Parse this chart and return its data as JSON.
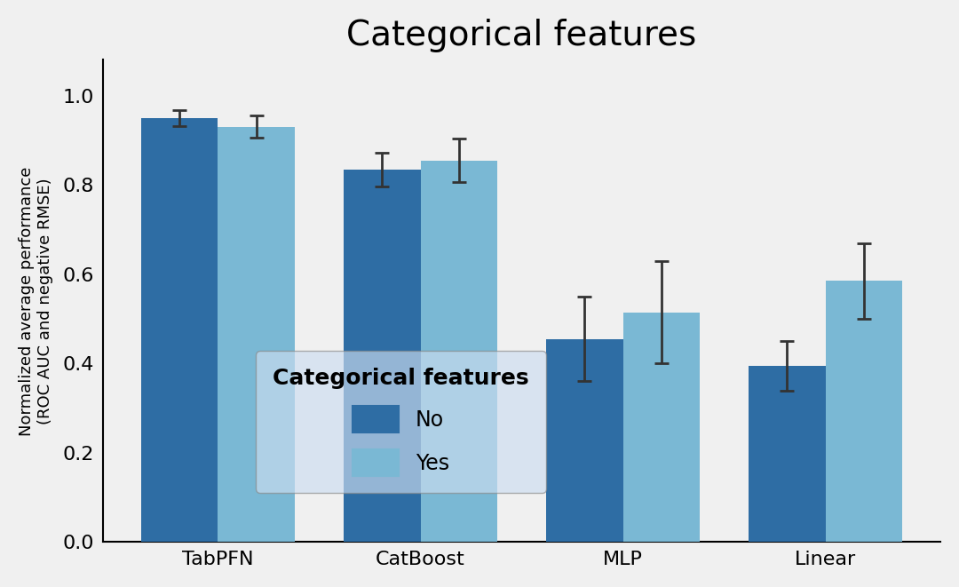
{
  "title": "Categorical features",
  "ylabel": "Normalized average performance\n(ROC AUC and negative RMSE)",
  "categories": [
    "TabPFN",
    "CatBoost",
    "MLP",
    "Linear"
  ],
  "legend_title": "Categorical features",
  "legend_labels": [
    "No",
    "Yes"
  ],
  "bar_color_no": "#2e6da4",
  "bar_color_yes": "#7ab8d4",
  "bar_width": 0.38,
  "ylim": [
    0,
    1.08
  ],
  "yticks": [
    0,
    0.2,
    0.4,
    0.6,
    0.8,
    1.0
  ],
  "values_no": [
    0.95,
    0.835,
    0.455,
    0.395
  ],
  "values_yes": [
    0.93,
    0.855,
    0.515,
    0.585
  ],
  "err_no": [
    0.018,
    0.038,
    0.095,
    0.055
  ],
  "err_yes": [
    0.025,
    0.048,
    0.115,
    0.085
  ],
  "background_color": "#f0f0f0",
  "plot_bg_color": "#f0f0f0",
  "title_fontsize": 28,
  "label_fontsize": 13,
  "tick_fontsize": 16,
  "legend_fontsize": 17,
  "legend_title_fontsize": 18
}
